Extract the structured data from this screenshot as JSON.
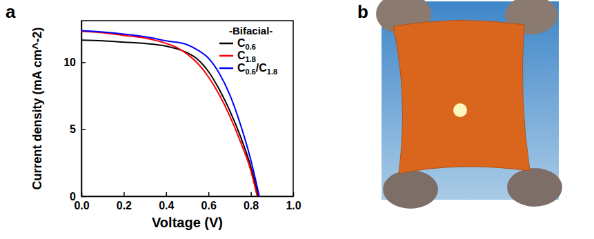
{
  "chart_data": {
    "type": "line",
    "panel_label": "a",
    "x_label": "Voltage (V)",
    "y_label": "Current density (mA cm^-2)",
    "legend_title": "-Bifacial-",
    "legend": "upper right",
    "xlim": [
      0,
      1.0
    ],
    "xticks": [
      {
        "value": 0,
        "label": "0.0"
      },
      {
        "value": 0.2,
        "label": "0.2"
      },
      {
        "value": 0.4,
        "label": "0.4"
      },
      {
        "value": 0.6,
        "label": "0.6"
      },
      {
        "value": 0.8,
        "label": "0.8"
      },
      {
        "value": 1.0,
        "label": "1.0"
      }
    ],
    "ylim": [
      0,
      13.1
    ],
    "yticks": [
      0,
      5,
      10
    ],
    "x": [
      0,
      0.1,
      0.2,
      0.3,
      0.4,
      0.45,
      0.5,
      0.55,
      0.6,
      0.65,
      0.7,
      0.75,
      0.8,
      0.835
    ],
    "series": [
      {
        "name": "C0.6",
        "color": "#000000",
        "x": [
          0,
          0.1,
          0.2,
          0.3,
          0.4,
          0.45,
          0.5,
          0.55,
          0.6,
          0.65,
          0.7,
          0.75,
          0.8,
          0.835
        ],
        "values": [
          11.65,
          11.6,
          11.5,
          11.4,
          11.2,
          11.0,
          10.7,
          10.2,
          9.3,
          8.0,
          6.4,
          4.5,
          2.2,
          0
        ]
      },
      {
        "name": "C1.8",
        "color": "#ff0000",
        "x": [
          0,
          0.1,
          0.2,
          0.3,
          0.4,
          0.45,
          0.5,
          0.55,
          0.6,
          0.65,
          0.7,
          0.75,
          0.8,
          0.83
        ],
        "values": [
          12.3,
          12.2,
          12.0,
          11.8,
          11.4,
          11.1,
          10.6,
          9.9,
          8.9,
          7.6,
          6.0,
          4.1,
          1.9,
          0
        ]
      },
      {
        "name": "C0.6/C1.8",
        "color": "#0000ff",
        "x": [
          0,
          0.1,
          0.2,
          0.3,
          0.4,
          0.5,
          0.55,
          0.6,
          0.65,
          0.7,
          0.75,
          0.8,
          0.84
        ],
        "values": [
          12.35,
          12.25,
          12.1,
          11.9,
          11.6,
          11.3,
          10.9,
          10.3,
          9.2,
          7.6,
          5.4,
          2.7,
          0
        ]
      }
    ]
  },
  "photo": {
    "panel_label": "b"
  }
}
